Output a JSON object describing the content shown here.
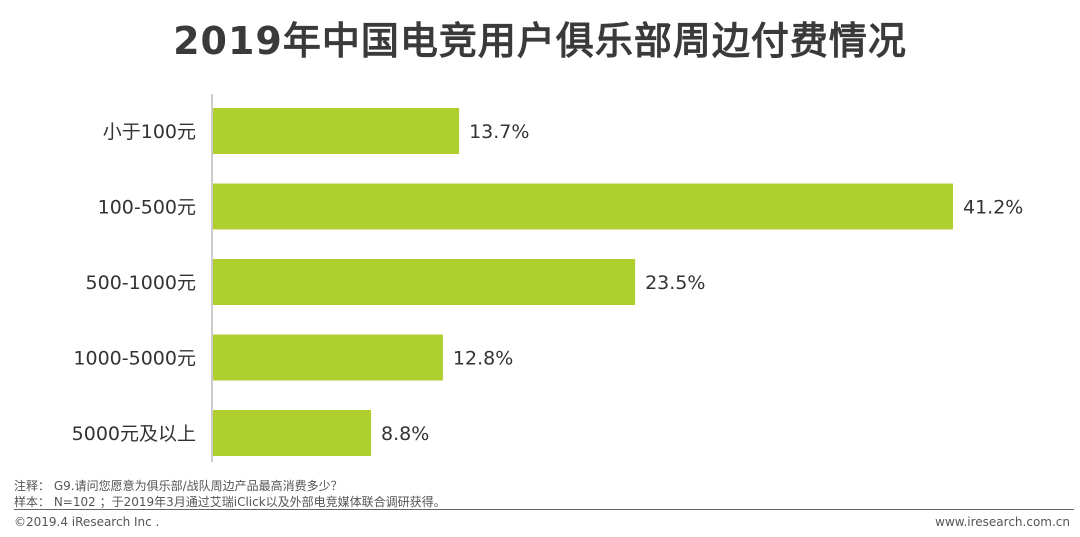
{
  "title": "2019年中国电竞用户俱乐部周边付费情况",
  "chart_data": {
    "type": "bar",
    "orientation": "horizontal",
    "categories": [
      "小于100元",
      "100-500元",
      "500-1000元",
      "1000-5000元",
      "5000元及以上"
    ],
    "values": [
      13.7,
      41.2,
      23.5,
      12.8,
      8.8
    ],
    "value_labels": [
      "13.7%",
      "41.2%",
      "23.5%",
      "12.8%",
      "8.8%"
    ],
    "unit": "%",
    "xlim": [
      0,
      44
    ],
    "grid": false,
    "legend": "none",
    "bar_color": "#afcf2f"
  },
  "notes": {
    "line1": "注释： G9.请问您愿意为俱乐部/战队周边产品最高消费多少？",
    "line2": "样本： N=102 ；于2019年3月通过艾瑞iClick以及外部电竞媒体联合调研获得。"
  },
  "footer": {
    "copyright": "©2019.4 iResearch Inc .",
    "website": "www.iresearch.com.cn"
  }
}
